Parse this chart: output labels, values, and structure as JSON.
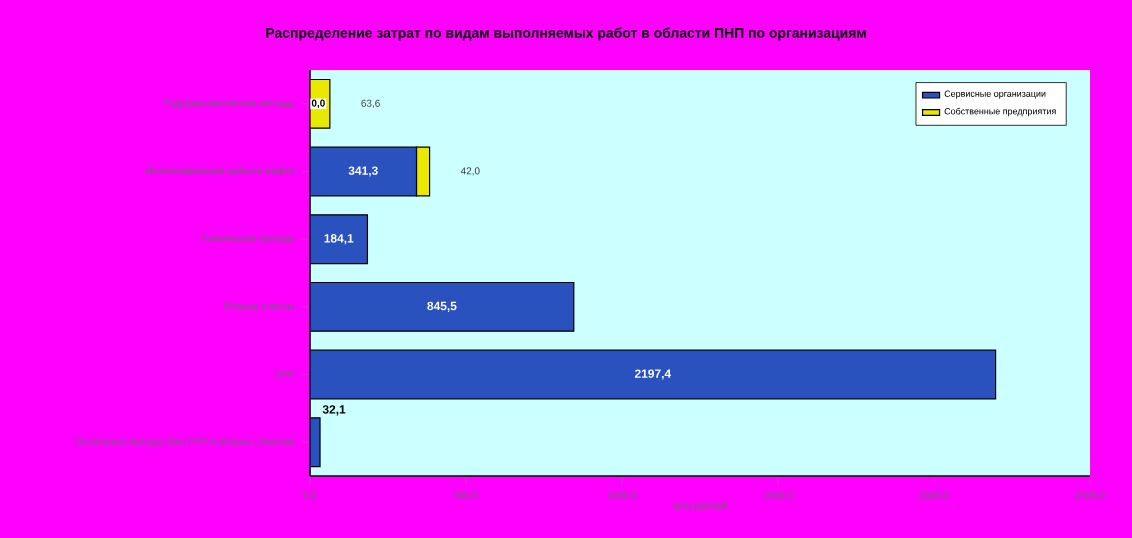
{
  "chart_data": {
    "type": "bar",
    "orientation": "horizontal",
    "stacked": true,
    "title": "Распределение затрат по видам выполняемых работ в области ПНП по организациям",
    "xlabel": "млн рублей",
    "categories": [
      "Гидродинамические методы",
      "Интенсификация добычи нефти",
      "Химические методы",
      "Вторые стволы",
      "ГРП",
      "Остальные методы (без ГРП и вторых стволов)"
    ],
    "series": [
      {
        "name": "Сервисные организации",
        "color": "#2a52be",
        "values": [
          0.0,
          341.3,
          184.1,
          845.5,
          2197.4,
          32.1
        ],
        "value_labels": [
          "0,0",
          "341,3",
          "184,1",
          "845,5",
          "2197,4",
          "32,1"
        ]
      },
      {
        "name": "Собственные предприятия",
        "color": "#e8e800",
        "values": [
          63.6,
          42.0,
          null,
          null,
          null,
          null
        ],
        "value_labels": [
          "63,6",
          "42,0",
          null,
          null,
          null,
          null
        ]
      }
    ],
    "xlim": [
      0,
      2500
    ],
    "xticks": [
      {
        "value": 0,
        "label": "0,0"
      },
      {
        "value": 500,
        "label": "500,0"
      },
      {
        "value": 1000,
        "label": "1000,0"
      },
      {
        "value": 1500,
        "label": "1500,0"
      },
      {
        "value": 2000,
        "label": "2000,0"
      },
      {
        "value": 2500,
        "label": "2500,0"
      }
    ],
    "grid": false,
    "legend": "top right"
  }
}
